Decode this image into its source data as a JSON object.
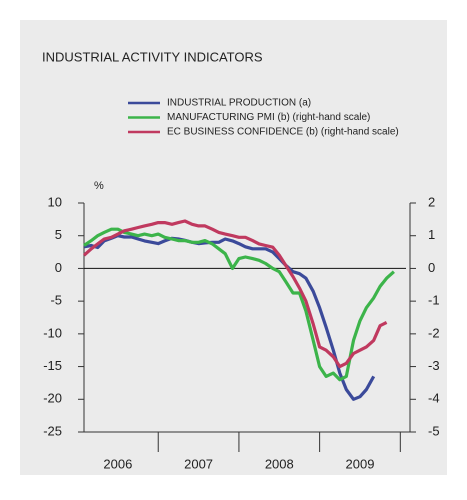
{
  "chart_data": {
    "type": "line",
    "title": "INDUSTRIAL ACTIVITY INDICATORS",
    "ylabel": "%",
    "x": [
      2006.08,
      2006.17,
      2006.25,
      2006.33,
      2006.42,
      2006.5,
      2006.58,
      2006.67,
      2006.75,
      2006.83,
      2006.92,
      2007.0,
      2007.08,
      2007.17,
      2007.25,
      2007.33,
      2007.42,
      2007.5,
      2007.58,
      2007.67,
      2007.75,
      2007.83,
      2007.92,
      2008.0,
      2008.08,
      2008.17,
      2008.25,
      2008.33,
      2008.42,
      2008.5,
      2008.58,
      2008.67,
      2008.75,
      2008.83,
      2008.92,
      2009.0,
      2009.08,
      2009.17,
      2009.25,
      2009.33,
      2009.42,
      2009.5,
      2009.58,
      2009.67,
      2009.75,
      2009.83,
      2009.92
    ],
    "series": [
      {
        "name": "INDUSTRIAL PRODUCTION (a)",
        "color": "#3b4a9a",
        "axis": "y",
        "values": [
          3.3,
          3.5,
          3.2,
          4.2,
          4.6,
          5,
          4.8,
          4.8,
          4.5,
          4.2,
          4.0,
          3.8,
          4.2,
          4.6,
          4.5,
          4.3,
          4.0,
          3.8,
          3.9,
          4.0,
          4.0,
          4.5,
          4.2,
          3.8,
          3.3,
          3.0,
          3.0,
          3.0,
          2.5,
          1.5,
          0.5,
          -0.5,
          -0.8,
          -1.5,
          -3.5,
          -6,
          -9,
          -12.5,
          -16,
          -18.5,
          -20,
          -19.6,
          -18.5,
          -16.5,
          null,
          null,
          null
        ]
      },
      {
        "name": "MANUFACTURING PMI (b) (right-hand scale)",
        "color": "#3cb44a",
        "axis": "y2",
        "values": [
          0.7,
          0.85,
          1.0,
          1.1,
          1.2,
          1.2,
          1.1,
          1.05,
          1.0,
          1.05,
          1.0,
          1.05,
          0.95,
          0.9,
          0.85,
          0.85,
          0.8,
          0.8,
          0.85,
          0.75,
          0.6,
          0.45,
          0.0,
          0.3,
          0.35,
          0.3,
          0.25,
          0.15,
          0.0,
          -0.1,
          -0.4,
          -0.75,
          -0.75,
          -1.3,
          -2.2,
          -3.0,
          -3.3,
          -3.2,
          -3.4,
          -3.3,
          -2.2,
          -1.6,
          -1.2,
          -0.9,
          -0.55,
          -0.3,
          -0.1
        ]
      },
      {
        "name": "EC BUSINESS CONFIDENCE (b) (right-hand scale)",
        "color": "#c0395f",
        "axis": "y2",
        "values": [
          0.4,
          0.6,
          0.75,
          0.9,
          0.95,
          1.05,
          1.15,
          1.2,
          1.25,
          1.3,
          1.35,
          1.4,
          1.4,
          1.35,
          1.4,
          1.45,
          1.35,
          1.3,
          1.3,
          1.2,
          1.1,
          1.05,
          1.0,
          0.95,
          0.95,
          0.85,
          0.75,
          0.7,
          0.65,
          0.4,
          0.1,
          -0.25,
          -0.6,
          -1.0,
          -1.7,
          -2.4,
          -2.5,
          -2.7,
          -3.0,
          -2.9,
          -2.6,
          -2.5,
          -2.4,
          -2.2,
          -1.75,
          -1.65,
          null
        ]
      }
    ],
    "xlim": [
      2006.08,
      2010.12
    ],
    "xticks": [
      {
        "value": 2006.5,
        "label": "2006"
      },
      {
        "value": 2007.5,
        "label": "2007"
      },
      {
        "value": 2008.5,
        "label": "2008"
      },
      {
        "value": 2009.5,
        "label": "2009"
      }
    ],
    "ylim": [
      -25,
      10
    ],
    "yticks": [
      -25,
      -20,
      -15,
      -10,
      -5,
      0,
      5,
      10
    ],
    "y2lim": [
      -5,
      2
    ],
    "y2ticks": [
      -5,
      -4,
      -3,
      -2,
      -1,
      0,
      1,
      2
    ]
  }
}
